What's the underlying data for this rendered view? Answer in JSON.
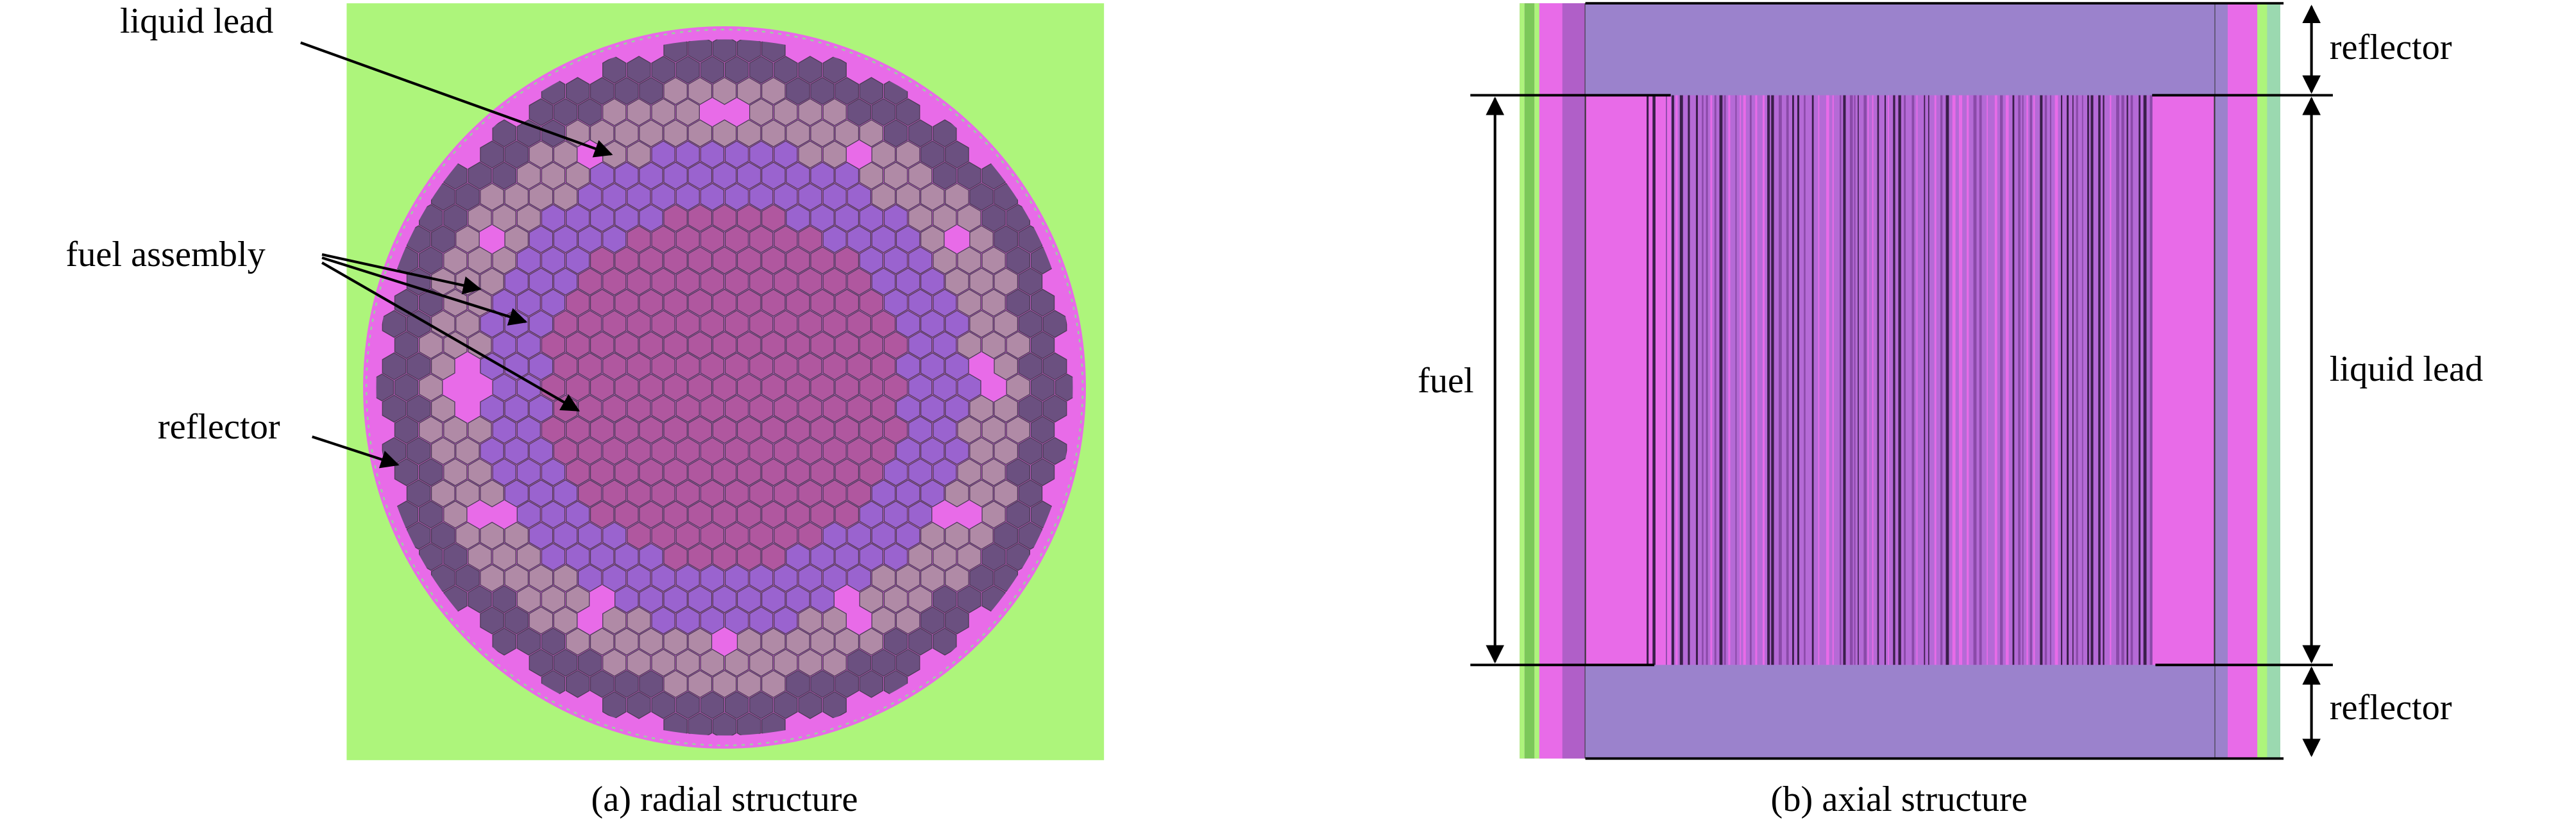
{
  "radial": {
    "labels": {
      "liquid_lead": "liquid lead",
      "fuel_assembly": "fuel assembly",
      "reflector": "reflector"
    },
    "caption": "(a) radial structure"
  },
  "axial": {
    "labels": {
      "reflector_top": "reflector",
      "fuel": "fuel",
      "liquid_lead": "liquid lead",
      "reflector_bottom": "reflector"
    },
    "caption": "(b) axial structure"
  }
}
